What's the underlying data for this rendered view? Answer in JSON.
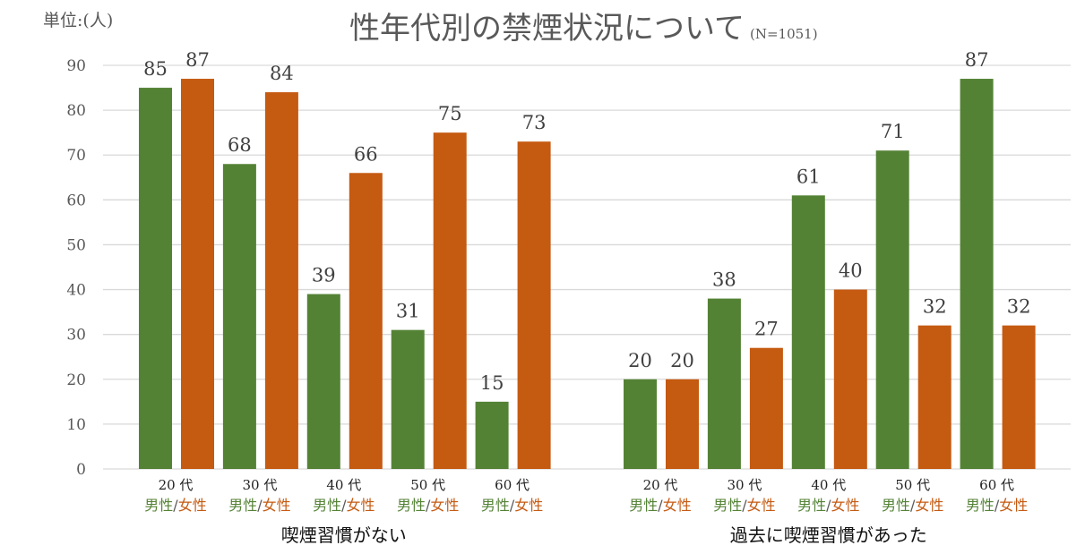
{
  "chart_data": {
    "type": "bar",
    "title": "性年代別の禁煙状況について",
    "subtitle": "(N=1051)",
    "unit_label": "単位:(人)",
    "ylim": [
      0,
      90
    ],
    "yticks": [
      0,
      10,
      20,
      30,
      40,
      50,
      60,
      70,
      80,
      90
    ],
    "grid": true,
    "colors": {
      "male": "#548235",
      "female": "#C55A11",
      "grid": "#D9D9D9",
      "text": "#595959"
    },
    "sex_label": {
      "male": "男性",
      "sep": "/",
      "female": "女性"
    },
    "groups": [
      {
        "name": "喫煙習慣がない",
        "categories": [
          "20 代",
          "30 代",
          "40 代",
          "50 代",
          "60 代"
        ],
        "series": [
          {
            "name": "男性",
            "values": [
              85,
              68,
              39,
              31,
              15
            ]
          },
          {
            "name": "女性",
            "values": [
              87,
              84,
              66,
              75,
              73
            ]
          }
        ]
      },
      {
        "name": "過去に喫煙習慣があった",
        "categories": [
          "20 代",
          "30 代",
          "40 代",
          "50 代",
          "60 代"
        ],
        "series": [
          {
            "name": "男性",
            "values": [
              20,
              38,
              61,
              71,
              87
            ]
          },
          {
            "name": "女性",
            "values": [
              20,
              27,
              40,
              32,
              32
            ]
          }
        ]
      }
    ]
  }
}
